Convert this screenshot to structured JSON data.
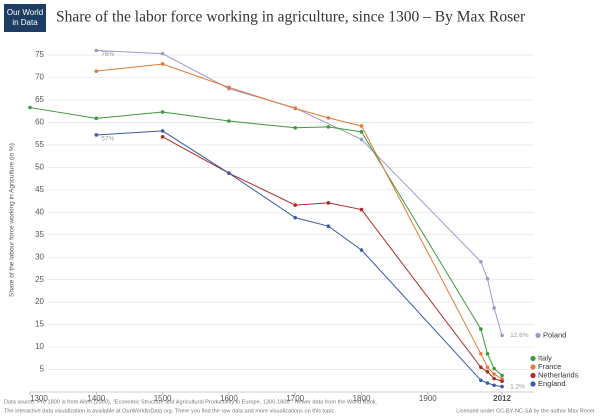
{
  "logo": [
    "Our World",
    "in Data"
  ],
  "chart_data": {
    "type": "line",
    "title": "Share of the labor force working in agriculture, since 1300 – By Max Roser",
    "ylabel": "Share of the labour force working in Agriculture (in %)",
    "xlim": [
      1300,
      2030
    ],
    "xticks": [
      1300,
      1400,
      1500,
      1600,
      1700,
      1800,
      1900,
      2012
    ],
    "ylim": [
      0,
      77
    ],
    "yticks": [
      5,
      10,
      15,
      20,
      25,
      30,
      35,
      40,
      45,
      50,
      55,
      60,
      65,
      70,
      75
    ],
    "grid": true,
    "legend": "right",
    "series": [
      {
        "name": "Poland",
        "color": "#9b9bc9",
        "x": [
          1400,
          1500,
          1600,
          1700,
          1800,
          1980,
          1990,
          2000,
          2012
        ],
        "values": [
          76,
          75.3,
          67.5,
          63.2,
          56.2,
          29,
          25.2,
          18.7,
          12.6
        ],
        "value_labels": [
          "76%",
          null,
          null,
          null,
          null,
          null,
          null,
          null,
          "12.6%"
        ]
      },
      {
        "name": "Italy",
        "color": "#3e9a3e",
        "x": [
          1300,
          1400,
          1500,
          1600,
          1700,
          1750,
          1800,
          1980,
          1990,
          2000,
          2012
        ],
        "values": [
          63.3,
          60.9,
          62.3,
          60.3,
          58.8,
          59,
          57.9,
          14,
          8.5,
          5.2,
          3.7
        ]
      },
      {
        "name": "France",
        "color": "#e07b39",
        "x": [
          1400,
          1500,
          1600,
          1700,
          1750,
          1800,
          1980,
          1990,
          2000,
          2012
        ],
        "values": [
          71.4,
          73,
          67.8,
          63.1,
          61,
          59.2,
          8.5,
          5.5,
          4,
          2.9
        ]
      },
      {
        "name": "Netherlands",
        "color": "#b02a2a",
        "x": [
          1500,
          1600,
          1700,
          1750,
          1800,
          1980,
          1990,
          2000,
          2012
        ],
        "values": [
          56.8,
          48.7,
          41.6,
          42.1,
          40.6,
          5.5,
          4.5,
          3,
          2.4
        ]
      },
      {
        "name": "England",
        "color": "#3b5ba8",
        "x": [
          1400,
          1500,
          1600,
          1700,
          1750,
          1800,
          1980,
          1990,
          2000,
          2012
        ],
        "values": [
          57.2,
          58.1,
          48.7,
          38.8,
          36.9,
          31.6,
          2.6,
          2,
          1.5,
          1.2
        ],
        "value_labels": [
          "57%",
          null,
          null,
          null,
          null,
          null,
          null,
          null,
          null,
          "1.2%"
        ]
      }
    ]
  },
  "footer": [
    "Data source: Pre 1800 is from Allen (2000), \"Economic Structure and Agricultural Productivity in Europe, 1300-1800\". Newer data from the World Bank.",
    "The interactive data visualization is available at OurWorldinData.org. There you find the raw data and more visualizations on this topic.",
    "Licensed under CC-BY-NC-SA by the author Max Roser."
  ]
}
